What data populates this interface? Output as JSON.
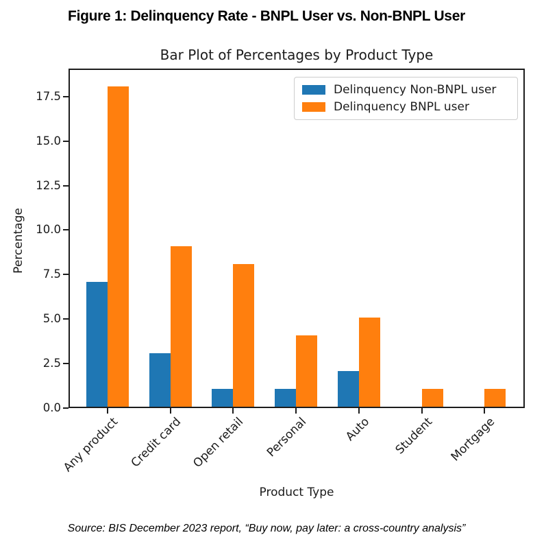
{
  "figure": {
    "title": "Figure 1: Delinquency Rate - BNPL User vs. Non-BNPL User"
  },
  "source": "Source: BIS December 2023 report, “Buy now, pay later: a cross-country analysis”",
  "chart_data": {
    "type": "bar",
    "title": "Bar Plot of Percentages by Product Type",
    "xlabel": "Product Type",
    "ylabel": "Percentage",
    "categories": [
      "Any product",
      "Credit card",
      "Open retail",
      "Personal",
      "Auto",
      "Student",
      "Mortgage"
    ],
    "series": [
      {
        "name": "Delinquency Non-BNPL user",
        "color": "#1f77b4",
        "values": [
          7,
          3,
          1,
          1,
          2,
          0,
          0
        ]
      },
      {
        "name": "Delinquency BNPL user",
        "color": "#ff7f0e",
        "values": [
          18,
          9,
          8,
          4,
          5,
          1,
          1
        ]
      }
    ],
    "yticks": [
      0.0,
      2.5,
      5.0,
      7.5,
      10.0,
      12.5,
      15.0,
      17.5
    ],
    "ylim": [
      0,
      18.9
    ],
    "grid": false,
    "legend_position": "upper right"
  }
}
